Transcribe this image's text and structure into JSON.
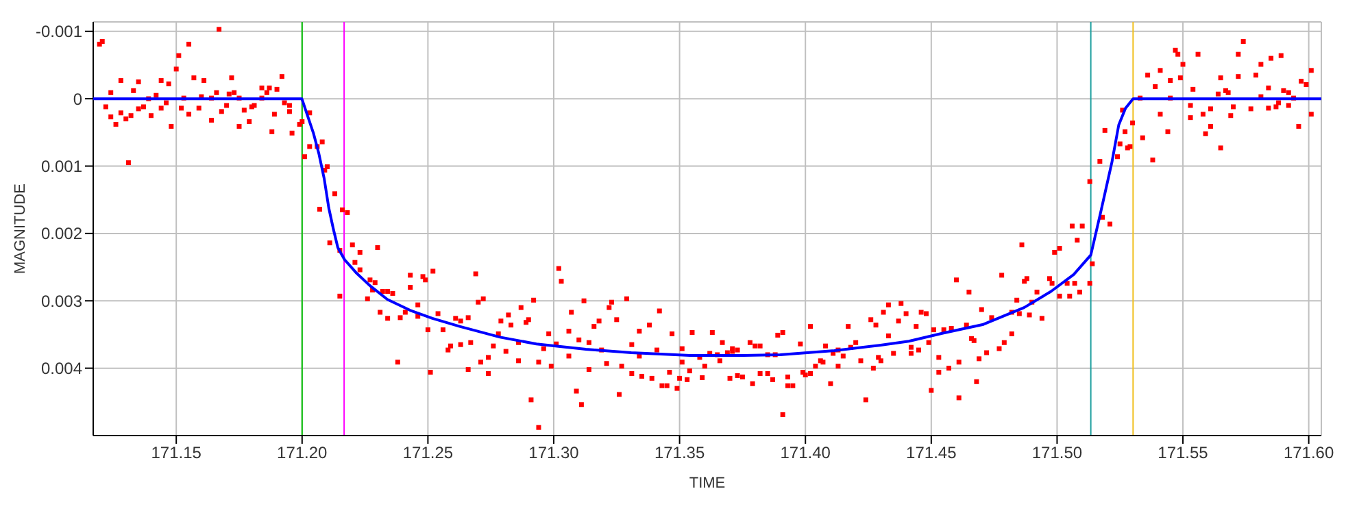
{
  "chart_data": {
    "type": "scatter",
    "xlabel": "TIME",
    "ylabel": "MAGNITUDE",
    "xlim": [
      171.117,
      171.605
    ],
    "ylim": [
      0.005,
      -0.00114
    ],
    "xticks": [
      {
        "value": 171.15,
        "label": "171.15"
      },
      {
        "value": 171.2,
        "label": "171.20"
      },
      {
        "value": 171.25,
        "label": "171.25"
      },
      {
        "value": 171.3,
        "label": "171.30"
      },
      {
        "value": 171.35,
        "label": "171.35"
      },
      {
        "value": 171.4,
        "label": "171.40"
      },
      {
        "value": 171.45,
        "label": "171.45"
      },
      {
        "value": 171.5,
        "label": "171.50"
      },
      {
        "value": 171.55,
        "label": "171.55"
      },
      {
        "value": 171.6,
        "label": "171.60"
      }
    ],
    "yticks": [
      -0.001,
      0,
      0.001,
      0.002,
      0.003,
      0.004
    ],
    "grid": true,
    "ref_lines": [
      {
        "axis": "x",
        "value": 171.2,
        "color": "#00c000"
      },
      {
        "axis": "x",
        "value": 171.2167,
        "color": "#ff00ff"
      },
      {
        "axis": "x",
        "value": 171.5134,
        "color": "#20a0a0"
      },
      {
        "axis": "x",
        "value": 171.5302,
        "color": "#f0c020"
      }
    ],
    "series": [
      {
        "color": "#ff0000",
        "marker": "square",
        "x": [
          171.1195,
          171.1206,
          171.124,
          171.122,
          171.124,
          171.128,
          171.126,
          171.128,
          171.13,
          171.131,
          171.132,
          171.133,
          171.135,
          171.135,
          171.137,
          171.139,
          171.14,
          171.142,
          171.144,
          171.144,
          171.146,
          171.147,
          171.148,
          171.15,
          171.151,
          171.152,
          171.153,
          171.155,
          171.155,
          171.157,
          171.159,
          171.16,
          171.161,
          171.164,
          171.164,
          171.166,
          171.167,
          171.168,
          171.17,
          171.171,
          171.172,
          171.173,
          171.175,
          171.175,
          171.177,
          171.179,
          171.18,
          171.181,
          171.184,
          171.184,
          171.186,
          171.187,
          171.188,
          171.189,
          171.19,
          171.192,
          171.193,
          171.195,
          171.195,
          171.196,
          171.199,
          171.2,
          171.203,
          171.203,
          171.201,
          171.206,
          171.208,
          171.21,
          171.209,
          171.213,
          171.207,
          171.216,
          171.218,
          171.211,
          171.215,
          171.22,
          171.223,
          171.221,
          171.223,
          171.23,
          171.215,
          171.227,
          171.229,
          171.228,
          171.226,
          171.231,
          171.232,
          171.234,
          171.236,
          171.234,
          171.238,
          171.239,
          171.241,
          171.243,
          171.243,
          171.246,
          171.246,
          171.248,
          171.249,
          171.252,
          171.25,
          171.251,
          171.254,
          171.256,
          171.258,
          171.259,
          171.261,
          171.263,
          171.263,
          171.266,
          171.267,
          171.266,
          171.269,
          171.27,
          171.272,
          171.271,
          171.274,
          171.274,
          171.276,
          171.278,
          171.279,
          171.282,
          171.283,
          171.281,
          171.286,
          171.286,
          171.287,
          171.289,
          171.29,
          171.292,
          171.291,
          171.294,
          171.294,
          171.296,
          171.298,
          171.299,
          171.301,
          171.302,
          171.303,
          171.306,
          171.306,
          171.307,
          171.309,
          171.31,
          171.311,
          171.312,
          171.314,
          171.314,
          171.316,
          171.318,
          171.319,
          171.321,
          171.322,
          171.323,
          171.325,
          171.326,
          171.327,
          171.329,
          171.331,
          171.331,
          171.334,
          171.334,
          171.335,
          171.338,
          171.339,
          171.341,
          171.342,
          171.343,
          171.345,
          171.346,
          171.347,
          171.349,
          171.35,
          171.351,
          171.351,
          171.353,
          171.354,
          171.355,
          171.358,
          171.359,
          171.36,
          171.362,
          171.363,
          171.365,
          171.366,
          171.367,
          171.369,
          171.37,
          171.371,
          171.371,
          171.373,
          171.373,
          171.375,
          171.378,
          171.379,
          171.38,
          171.382,
          171.382,
          171.385,
          171.385,
          171.387,
          171.388,
          171.389,
          171.391,
          171.391,
          171.393,
          171.393,
          171.395,
          171.398,
          171.399,
          171.4,
          171.402,
          171.402,
          171.404,
          171.406,
          171.407,
          171.408,
          171.41,
          171.411,
          171.413,
          171.413,
          171.415,
          171.417,
          171.418,
          171.42,
          171.422,
          171.424,
          171.426,
          171.427,
          171.428,
          171.429,
          171.43,
          171.431,
          171.433,
          171.433,
          171.435,
          171.437,
          171.438,
          171.44,
          171.442,
          171.442,
          171.444,
          171.445,
          171.446,
          171.448,
          171.449,
          171.45,
          171.451,
          171.453,
          171.453,
          171.455,
          171.457,
          171.458,
          171.46,
          171.461,
          171.461,
          171.464,
          171.465,
          171.466,
          171.467,
          171.468,
          171.469,
          171.47,
          171.472,
          171.474,
          171.477,
          171.478,
          171.479,
          171.482,
          171.482,
          171.484,
          171.485,
          171.486,
          171.487,
          171.488,
          171.489,
          171.49,
          171.492,
          171.494,
          171.497,
          171.498,
          171.499,
          171.501,
          171.501,
          171.504,
          171.505,
          171.506,
          171.507,
          171.508,
          171.509,
          171.51,
          171.513,
          171.513,
          171.514,
          171.517,
          171.518,
          171.519,
          171.521,
          171.524,
          171.525,
          171.526,
          171.527,
          171.528,
          171.529,
          171.53,
          171.533,
          171.534,
          171.536,
          171.538,
          171.539,
          171.541,
          171.541,
          171.544,
          171.545,
          171.545,
          171.547,
          171.548,
          171.549,
          171.55,
          171.553,
          171.553,
          171.554,
          171.556,
          171.558,
          171.559,
          171.561,
          171.561,
          171.564,
          171.565,
          171.565,
          171.567,
          171.568,
          171.569,
          171.57,
          171.572,
          171.572,
          171.574,
          171.577,
          171.579,
          171.581,
          171.581,
          171.584,
          171.584,
          171.585,
          171.587,
          171.588,
          171.589,
          171.59,
          171.592,
          171.592,
          171.594,
          171.596,
          171.597,
          171.599,
          171.601,
          171.601
        ],
        "values": [
          -0.00081,
          -0.00085,
          -9e-05,
          0.00012,
          0.00027,
          -0.00027,
          0.00038,
          0.00021,
          0.0003,
          0.00095,
          0.00025,
          -0.00012,
          -0.00025,
          0.00015,
          0.00012,
          0,
          0.00025,
          -5e-05,
          -0.00027,
          0.00014,
          6e-05,
          -0.00022,
          0.00041,
          -0.00044,
          -0.00064,
          0.00014,
          -1e-05,
          -0.00081,
          0.00023,
          -0.00031,
          0.00014,
          -3e-05,
          -0.00027,
          0.00032,
          -1e-05,
          -9e-05,
          -0.00103,
          0.00019,
          0.0001,
          -7e-05,
          -0.00031,
          -9e-05,
          -1e-05,
          0.00041,
          0.00017,
          0.00034,
          0.00012,
          0.0001,
          -0.00016,
          -1e-05,
          -9e-05,
          -0.00016,
          0.00049,
          0.00023,
          -0.00014,
          -0.00033,
          6e-05,
          0.0001,
          0.00019,
          0.00051,
          0.00038,
          0.00034,
          0.00021,
          0.00071,
          0.00086,
          0.00071,
          0.00064,
          0.00101,
          0.00106,
          0.00141,
          0.00164,
          0.00165,
          0.00169,
          0.00214,
          0.00225,
          0.00217,
          0.00228,
          0.00243,
          0.00254,
          0.00221,
          0.00293,
          0.00269,
          0.00273,
          0.00284,
          0.00297,
          0.00317,
          0.00286,
          0.00286,
          0.00289,
          0.00326,
          0.00391,
          0.00325,
          0.00317,
          0.00262,
          0.0028,
          0.00306,
          0.00323,
          0.00264,
          0.00269,
          0.00256,
          0.00343,
          0.00406,
          0.00319,
          0.00343,
          0.00373,
          0.00367,
          0.00326,
          0.0033,
          0.00365,
          0.00325,
          0.00362,
          0.00402,
          0.0026,
          0.00302,
          0.00297,
          0.00391,
          0.00384,
          0.00408,
          0.00367,
          0.00349,
          0.0033,
          0.00321,
          0.00336,
          0.00375,
          0.00362,
          0.00389,
          0.0031,
          0.00332,
          0.00328,
          0.00299,
          0.00447,
          0.00488,
          0.00391,
          0.00371,
          0.00349,
          0.00397,
          0.00364,
          0.00252,
          0.00271,
          0.00345,
          0.00382,
          0.00317,
          0.00434,
          0.00358,
          0.00454,
          0.003,
          0.00362,
          0.00402,
          0.00338,
          0.0033,
          0.00373,
          0.00393,
          0.0031,
          0.00302,
          0.00328,
          0.00439,
          0.00397,
          0.00297,
          0.00365,
          0.00408,
          0.00345,
          0.00382,
          0.00412,
          0.00336,
          0.00415,
          0.00373,
          0.00315,
          0.00426,
          0.00426,
          0.00406,
          0.00349,
          0.0043,
          0.00415,
          0.00391,
          0.00371,
          0.00417,
          0.00404,
          0.00347,
          0.00384,
          0.00414,
          0.00397,
          0.00378,
          0.00347,
          0.0038,
          0.00389,
          0.00362,
          0.00377,
          0.00415,
          0.00371,
          0.00375,
          0.00373,
          0.00411,
          0.00413,
          0.00362,
          0.00423,
          0.00367,
          0.00408,
          0.00367,
          0.0038,
          0.00408,
          0.00417,
          0.0038,
          0.00351,
          0.00469,
          0.00347,
          0.00413,
          0.00426,
          0.00426,
          0.00364,
          0.00406,
          0.0041,
          0.00408,
          0.00338,
          0.00397,
          0.00389,
          0.00391,
          0.00367,
          0.00423,
          0.00378,
          0.00397,
          0.00373,
          0.00382,
          0.00338,
          0.00369,
          0.00362,
          0.00389,
          0.00447,
          0.00328,
          0.004,
          0.00336,
          0.00384,
          0.00389,
          0.00317,
          0.00306,
          0.00352,
          0.00378,
          0.0033,
          0.00304,
          0.00319,
          0.00369,
          0.00378,
          0.00338,
          0.00373,
          0.00317,
          0.00319,
          0.00362,
          0.00433,
          0.00343,
          0.00384,
          0.00406,
          0.00343,
          0.004,
          0.00341,
          0.00269,
          0.00391,
          0.00444,
          0.00336,
          0.00287,
          0.00356,
          0.00359,
          0.0042,
          0.00386,
          0.00313,
          0.00377,
          0.00325,
          0.00371,
          0.00262,
          0.00362,
          0.00317,
          0.00349,
          0.00299,
          0.00319,
          0.00217,
          0.00271,
          0.00267,
          0.00321,
          0.00302,
          0.00287,
          0.00326,
          0.00267,
          0.00274,
          0.00228,
          0.00222,
          0.00293,
          0.00274,
          0.00293,
          0.00189,
          0.00274,
          0.0021,
          0.00287,
          0.00189,
          0.00123,
          0.00274,
          0.00245,
          0.00093,
          0.00176,
          0.00047,
          0.00186,
          0.00086,
          0.00067,
          0.00017,
          0.00049,
          0.00073,
          0.00071,
          0.00036,
          -1e-05,
          0.00058,
          -0.00035,
          0.00091,
          -0.00018,
          -0.00042,
          0.00023,
          0.00049,
          -0.00027,
          -1e-05,
          -0.00072,
          -0.00066,
          -0.00031,
          -0.00051,
          0.0001,
          0.00028,
          -0.00014,
          -0.00066,
          0.00023,
          0.00052,
          0.00015,
          0.00041,
          -7e-05,
          0.00073,
          -0.00031,
          -0.00012,
          -9e-05,
          0.00025,
          0.00012,
          -0.00066,
          -0.00033,
          -0.00085,
          0.00015,
          -0.00035,
          -0.00051,
          -3e-05,
          0.00014,
          -0.00016,
          -0.0006,
          0.00012,
          6e-05,
          -0.00064,
          -0.00012,
          -9e-05,
          0.0001,
          -1e-05,
          0.00041,
          -0.00026,
          -0.00021,
          -0.00042,
          0.00023
        ]
      },
      {
        "type": "line",
        "color": "#0000ff",
        "marker": "none",
        "line_style": "solid",
        "x": [
          171.117,
          171.1999,
          171.2045,
          171.2067,
          171.2088,
          171.2106,
          171.2124,
          171.2142,
          171.2169,
          171.2214,
          171.2268,
          171.2339,
          171.2429,
          171.2518,
          171.2626,
          171.2787,
          171.2931,
          171.3128,
          171.3308,
          171.3541,
          171.3756,
          171.39,
          171.4115,
          171.4294,
          171.4411,
          171.4546,
          171.4707,
          171.4869,
          171.4976,
          171.5066,
          171.5134,
          171.5173,
          171.5218,
          171.5245,
          171.5272,
          171.5302,
          171.605
        ],
        "values": [
          0,
          0,
          0.00051,
          0.00082,
          0.00119,
          0.00162,
          0.00193,
          0.00221,
          0.00239,
          0.00258,
          0.00277,
          0.00298,
          0.00314,
          0.00326,
          0.00338,
          0.00354,
          0.00364,
          0.00372,
          0.00377,
          0.00381,
          0.00381,
          0.0038,
          0.00374,
          0.00366,
          0.0036,
          0.00348,
          0.00335,
          0.0031,
          0.00286,
          0.00261,
          0.00232,
          0.00169,
          0.00094,
          0.00039,
          0.00014,
          0,
          0
        ]
      }
    ]
  }
}
